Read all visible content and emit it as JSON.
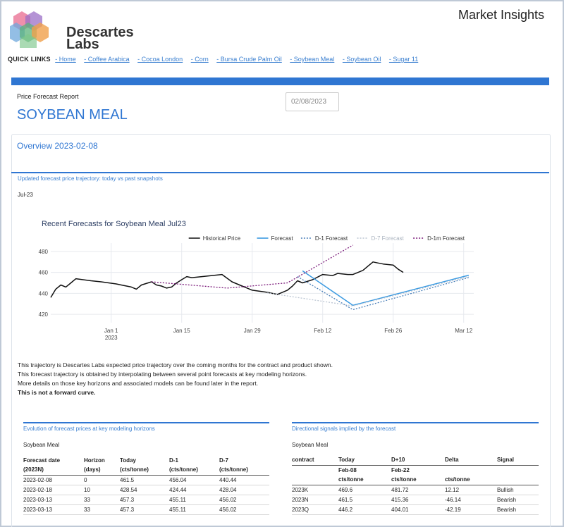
{
  "header": {
    "brand_line1": "Descartes",
    "brand_line2": "Labs",
    "app_title": "Market Insights"
  },
  "quick_links": {
    "title": "QUICK LINKS",
    "items": [
      "- Home",
      "- Coffee Arabica",
      "- Cocoa London",
      "- Corn",
      "- Bursa Crude Palm Oil",
      "- Soybean Meal",
      "- Soybean Oil",
      "- Sugar 11"
    ]
  },
  "report": {
    "label": "Price Forecast Report",
    "commodity": "SOYBEAN MEAL",
    "date_value": "02/08/2023",
    "overview": "Overview 2023-02-08",
    "trajectory_title": "Updated forecast price trajectory: today vs past snapshots",
    "contract": "Jul-23"
  },
  "notes": {
    "line1": "This trajectory is Descartes Labs expected price trajectory over the coming months for the contract and product shown.",
    "line2": "This forecast trajectory is obtained by interpolating between several point forecasts at key modeling horizons.",
    "line3": "More details on those key horizons and associated models can be found later in the report.",
    "line4": "This is not a forward curve."
  },
  "colors": {
    "accent": "#2f76d2",
    "link": "#3a7fd0",
    "historical": "#111111",
    "forecast": "#3b9ae1",
    "d1": "#4a7fb8",
    "d7": "#bcc6d3",
    "d1m": "#7b1a7a"
  },
  "chart_data": {
    "type": "line",
    "title": "Recent Forecasts for Soybean Meal Jul23",
    "x_ticks": [
      "Jan 1\n2023",
      "Jan 15",
      "Jan 29",
      "Feb 12",
      "Feb 26",
      "Mar 12"
    ],
    "x_tick_dates": [
      "2023-01-01",
      "2023-01-15",
      "2023-01-29",
      "2023-02-12",
      "2023-02-26",
      "2023-03-12"
    ],
    "y_ticks": [
      420,
      440,
      460,
      480
    ],
    "xlim": [
      "2022-12-20",
      "2023-03-14"
    ],
    "ylim": [
      412,
      488
    ],
    "legend_position": "top-right",
    "series": [
      {
        "name": "Historical Price",
        "style": "solid",
        "color": "#111111",
        "points": [
          [
            "2022-12-20",
            436
          ],
          [
            "2022-12-21",
            444
          ],
          [
            "2022-12-22",
            448
          ],
          [
            "2022-12-23",
            446
          ],
          [
            "2022-12-24",
            450
          ],
          [
            "2022-12-25",
            454
          ],
          [
            "2022-12-28",
            452
          ],
          [
            "2022-12-30",
            451
          ],
          [
            "2023-01-02",
            449
          ],
          [
            "2023-01-03",
            448
          ],
          [
            "2023-01-05",
            446
          ],
          [
            "2023-01-06",
            444
          ],
          [
            "2023-01-07",
            448
          ],
          [
            "2023-01-09",
            451
          ],
          [
            "2023-01-10",
            448
          ],
          [
            "2023-01-11",
            447
          ],
          [
            "2023-01-12",
            445
          ],
          [
            "2023-01-13",
            446
          ],
          [
            "2023-01-14",
            450
          ],
          [
            "2023-01-15",
            453
          ],
          [
            "2023-01-16",
            456
          ],
          [
            "2023-01-17",
            455
          ],
          [
            "2023-01-19",
            456
          ],
          [
            "2023-01-21",
            457
          ],
          [
            "2023-01-23",
            458
          ],
          [
            "2023-01-25",
            451
          ],
          [
            "2023-01-27",
            447
          ],
          [
            "2023-01-28",
            445
          ],
          [
            "2023-01-29",
            443
          ],
          [
            "2023-02-01",
            441
          ],
          [
            "2023-02-03",
            439
          ],
          [
            "2023-02-05",
            443
          ],
          [
            "2023-02-06",
            447
          ],
          [
            "2023-02-07",
            452
          ],
          [
            "2023-02-08",
            450
          ],
          [
            "2023-02-10",
            453
          ],
          [
            "2023-02-12",
            458
          ],
          [
            "2023-02-14",
            457
          ],
          [
            "2023-02-15",
            459
          ],
          [
            "2023-02-17",
            458
          ],
          [
            "2023-02-18",
            458
          ],
          [
            "2023-02-20",
            462
          ],
          [
            "2023-02-21",
            466
          ],
          [
            "2023-02-22",
            470
          ],
          [
            "2023-02-23",
            469
          ],
          [
            "2023-02-24",
            468
          ],
          [
            "2023-02-26",
            467
          ],
          [
            "2023-02-27",
            463
          ],
          [
            "2023-02-28",
            460
          ]
        ]
      },
      {
        "name": "Forecast",
        "style": "solid",
        "color": "#3b9ae1",
        "points": [
          [
            "2023-02-08",
            461.5
          ],
          [
            "2023-02-18",
            428.54
          ],
          [
            "2023-03-13",
            457.3
          ]
        ]
      },
      {
        "name": "D-1 Forecast",
        "style": "dotted",
        "color": "#4a7fb8",
        "points": [
          [
            "2023-02-07",
            456.04
          ],
          [
            "2023-02-18",
            424.44
          ],
          [
            "2023-03-13",
            455.11
          ]
        ]
      },
      {
        "name": "D-7 Forecast",
        "style": "dotted",
        "color": "#bcc6d3",
        "points": [
          [
            "2023-02-01",
            440.44
          ],
          [
            "2023-02-18",
            428.04
          ],
          [
            "2023-03-13",
            456.02
          ]
        ]
      },
      {
        "name": "D-1m Forecast",
        "style": "dotted",
        "color": "#7b1a7a",
        "points": [
          [
            "2023-01-09",
            451
          ],
          [
            "2023-01-24",
            445
          ],
          [
            "2023-02-05",
            450
          ],
          [
            "2023-02-18",
            486
          ]
        ]
      }
    ]
  },
  "horizons": {
    "title": "Evolution of forecast prices at key modeling horizons",
    "commodity": "Soybean Meal",
    "headers": [
      "Forecast date",
      "Horizon",
      "Today",
      "D-1",
      "D-7"
    ],
    "subheaders": [
      "(2023N)",
      "(days)",
      "(cts/tonne)",
      "(cts/tonne)",
      "(cts/tonne)"
    ],
    "rows": [
      [
        "2023-02-08",
        "0",
        "461.5",
        "456.04",
        "440.44"
      ],
      [
        "2023-02-18",
        "10",
        "428.54",
        "424.44",
        "428.04"
      ],
      [
        "2023-03-13",
        "33",
        "457.3",
        "455.11",
        "456.02"
      ],
      [
        "2023-03-13",
        "33",
        "457.3",
        "455.11",
        "456.02"
      ]
    ]
  },
  "signals": {
    "title": "Directional signals implied by the forecast",
    "commodity": "Soybean Meal",
    "headers": [
      "contract",
      "Today",
      "D+10",
      "Delta",
      "Signal"
    ],
    "subheaders1": [
      "",
      "Feb-08",
      "Feb-22",
      "",
      ""
    ],
    "subheaders2": [
      "",
      "cts/tonne",
      "cts/tonne",
      "cts/tonne",
      ""
    ],
    "rows": [
      [
        "2023K",
        "469.6",
        "481.72",
        "12.12",
        "Bullish"
      ],
      [
        "2023N",
        "461.5",
        "415.36",
        "-46.14",
        "Bearish"
      ],
      [
        "2023Q",
        "446.2",
        "404.01",
        "-42.19",
        "Bearish"
      ]
    ]
  }
}
